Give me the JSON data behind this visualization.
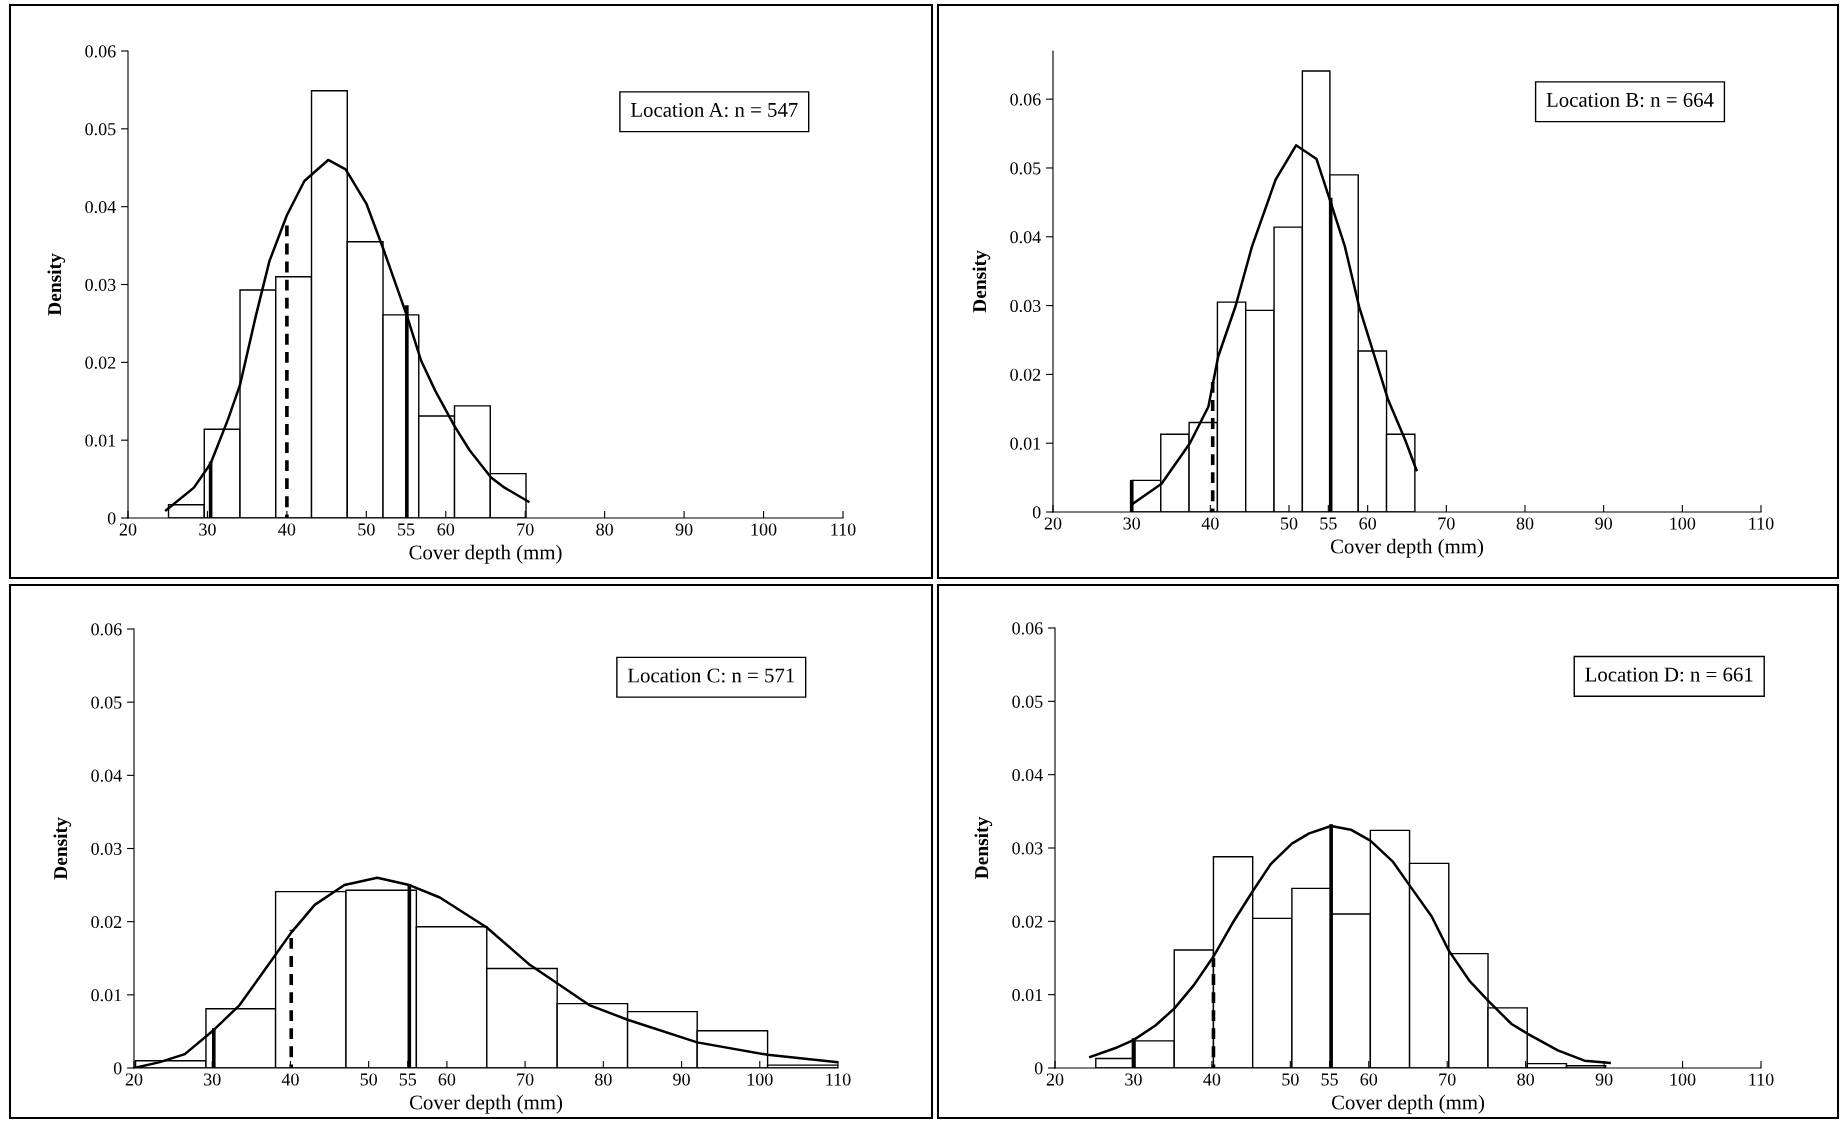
{
  "chart_data": [
    {
      "type": "histogram",
      "xlabel": "Cover depth (mm)",
      "ylabel": "Density",
      "annotations": [
        "Location A: n = 547"
      ],
      "bins": [
        25.1,
        29.6,
        34.1,
        38.6,
        43.1,
        47.6,
        52.1,
        56.6,
        61.1,
        65.6,
        70.1
      ],
      "values": [
        0.0017,
        0.0114,
        0.0293,
        0.031,
        0.0549,
        0.0355,
        0.0261,
        0.0131,
        0.0144,
        0.0057
      ],
      "color": "#ffffff",
      "series": [
        {
          "type": "line",
          "color": "#000000",
          "x": [
            24.8,
            28.3,
            30.4,
            32.6,
            34.1,
            36.1,
            37.8,
            40,
            42.2,
            45.2,
            47.4,
            50,
            52.2,
            55.1,
            56.9,
            58.7,
            61.1,
            63,
            65.7,
            67.4,
            70.4
          ],
          "values": [
            0.001,
            0.0039,
            0.007,
            0.0127,
            0.0171,
            0.026,
            0.033,
            0.0389,
            0.0433,
            0.046,
            0.0448,
            0.0404,
            0.0344,
            0.026,
            0.0202,
            0.0163,
            0.0118,
            0.0087,
            0.0052,
            0.0039,
            0.0021
          ]
        },
        {
          "type": "line",
          "color": "#000000",
          "x": [
            30.4,
            30.4
          ],
          "values": [
            0,
            0.007
          ]
        },
        {
          "type": "line",
          "color": "#000000",
          "line_style": "dashed",
          "x": [
            40,
            40
          ],
          "values": [
            0,
            0.0385
          ]
        },
        {
          "type": "line",
          "color": "#000000",
          "x": [
            55.1,
            55.1
          ],
          "values": [
            0,
            0.0271
          ]
        }
      ],
      "xlim": [
        20,
        110
      ],
      "xticks": [
        20,
        30,
        40,
        50,
        55,
        60,
        70,
        80,
        90,
        100,
        110
      ],
      "ylim": [
        0,
        0.06
      ],
      "yticks": [
        0,
        0.01,
        0.02,
        0.03,
        0.04,
        0.05,
        0.06
      ]
    },
    {
      "type": "histogram",
      "xlabel": "Cover depth (mm)",
      "ylabel": "Density",
      "annotations": [
        "Location B: n = 664"
      ],
      "bins": [
        30.1,
        33.7,
        37.3,
        40.9,
        44.5,
        48.1,
        51.7,
        55.2,
        58.8,
        62.4,
        66.0
      ],
      "values": [
        0.0046,
        0.0113,
        0.013,
        0.0305,
        0.0293,
        0.0414,
        0.0641,
        0.049,
        0.0234,
        0.0113
      ],
      "color": "#ffffff",
      "series": [
        {
          "type": "line",
          "color": "#000000",
          "x": [
            30,
            33.8,
            37.4,
            39.75,
            41,
            43.2,
            45.3,
            48.3,
            50.9,
            53.5,
            55.3,
            57.1,
            58.9,
            62.6,
            64.8,
            66.2
          ],
          "values": [
            0.0011,
            0.0041,
            0.01,
            0.0153,
            0.0226,
            0.0299,
            0.0386,
            0.0483,
            0.0533,
            0.0513,
            0.045,
            0.0386,
            0.0299,
            0.0163,
            0.0104,
            0.0061
          ]
        },
        {
          "type": "line",
          "color": "#000000",
          "x": [
            30,
            30
          ],
          "values": [
            0,
            0.0044
          ]
        },
        {
          "type": "line",
          "color": "#000000",
          "line_style": "dashed",
          "x": [
            40.3,
            40.3
          ],
          "values": [
            0,
            0.0192
          ]
        },
        {
          "type": "line",
          "color": "#000000",
          "x": [
            55.3,
            55.3
          ],
          "values": [
            0,
            0.0454
          ]
        }
      ],
      "xlim": [
        20,
        110
      ],
      "xticks": [
        20,
        30,
        40,
        50,
        55,
        60,
        70,
        80,
        90,
        100,
        110
      ],
      "ylim": [
        0,
        0.067
      ],
      "yticks": [
        0,
        0.01,
        0.02,
        0.03,
        0.04,
        0.05,
        0.06
      ]
    },
    {
      "type": "histogram",
      "xlabel": "Cover depth (mm)",
      "ylabel": "Density",
      "annotations": [
        "Location C: n = 571"
      ],
      "bins": [
        20.2,
        29.2,
        38.1,
        47.1,
        56.1,
        65.1,
        74.1,
        83.1,
        92.0,
        101.0,
        110.0
      ],
      "values": [
        0.001,
        0.0081,
        0.0241,
        0.0243,
        0.0193,
        0.0136,
        0.0088,
        0.0077,
        0.0051,
        0.0004
      ],
      "color": "#ffffff",
      "series": [
        {
          "type": "line",
          "color": "#000000",
          "x": [
            20,
            23.3,
            26.5,
            30.2,
            33.5,
            36.7,
            40.1,
            43.1,
            46.9,
            51.1,
            55.2,
            59.1,
            65.1,
            70.6,
            78.2,
            83.1,
            92,
            101,
            110
          ],
          "values": [
            0,
            0.0008,
            0.0019,
            0.0052,
            0.0086,
            0.0134,
            0.0185,
            0.0223,
            0.025,
            0.026,
            0.025,
            0.0233,
            0.0192,
            0.0141,
            0.0086,
            0.0066,
            0.0035,
            0.0018,
            0.0008
          ]
        },
        {
          "type": "line",
          "color": "#000000",
          "x": [
            30.2,
            30.2
          ],
          "values": [
            0,
            0.0052
          ]
        },
        {
          "type": "line",
          "color": "#000000",
          "line_style": "dashed",
          "x": [
            40.1,
            40.1
          ],
          "values": [
            0,
            0.0189
          ]
        },
        {
          "type": "line",
          "color": "#000000",
          "x": [
            55.2,
            55.2
          ],
          "values": [
            0,
            0.0249
          ]
        }
      ],
      "xlim": [
        20,
        110
      ],
      "xticks": [
        20,
        30,
        40,
        50,
        55,
        60,
        70,
        80,
        90,
        100,
        110
      ],
      "ylim": [
        0,
        0.06
      ],
      "yticks": [
        0,
        0.01,
        0.02,
        0.03,
        0.04,
        0.05,
        0.06
      ]
    },
    {
      "type": "histogram",
      "xlabel": "Cover depth (mm)",
      "ylabel": "Density",
      "annotations": [
        "Location D: n = 661"
      ],
      "bins": [
        25.2,
        30.2,
        35.2,
        40.2,
        45.2,
        50.2,
        55.2,
        60.2,
        65.2,
        70.2,
        75.2,
        80.2,
        85.2,
        90.2
      ],
      "values": [
        0.0013,
        0.0037,
        0.0161,
        0.0288,
        0.0204,
        0.0245,
        0.021,
        0.0324,
        0.0279,
        0.0156,
        0.0082,
        0.0006,
        0.0003
      ],
      "color": "#ffffff",
      "series": [
        {
          "type": "line",
          "color": "#000000",
          "x": [
            24.5,
            27.9,
            30,
            32.8,
            35.2,
            37.7,
            40.2,
            42.6,
            45.2,
            47.5,
            50.2,
            52.4,
            55.2,
            57.7,
            60.2,
            63.1,
            65.2,
            68,
            70.2,
            72.9,
            75.2,
            78.2,
            80.2,
            84.1,
            87.5,
            90.7
          ],
          "values": [
            0.0015,
            0.0028,
            0.0038,
            0.0058,
            0.0081,
            0.0113,
            0.0152,
            0.0197,
            0.0241,
            0.0278,
            0.0306,
            0.032,
            0.033,
            0.0325,
            0.031,
            0.0281,
            0.0249,
            0.0207,
            0.016,
            0.0118,
            0.0092,
            0.006,
            0.0047,
            0.0024,
            0.001,
            0.0007
          ]
        },
        {
          "type": "line",
          "color": "#000000",
          "x": [
            30,
            30
          ],
          "values": [
            0,
            0.0038
          ]
        },
        {
          "type": "line",
          "color": "#000000",
          "line_style": "dashed",
          "x": [
            40.2,
            40.2
          ],
          "values": [
            0,
            0.015
          ]
        },
        {
          "type": "line",
          "color": "#000000",
          "x": [
            55.2,
            55.2
          ],
          "values": [
            0,
            0.033
          ]
        }
      ],
      "xlim": [
        20,
        110
      ],
      "xticks": [
        20,
        30,
        40,
        50,
        55,
        60,
        70,
        80,
        90,
        100,
        110
      ],
      "ylim": [
        0,
        0.06
      ],
      "yticks": [
        0,
        0.01,
        0.02,
        0.03,
        0.04,
        0.05,
        0.06
      ]
    }
  ]
}
